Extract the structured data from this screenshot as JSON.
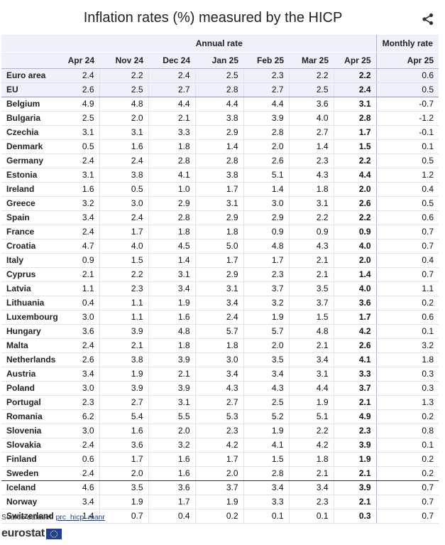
{
  "title": "Inflation rates (%) measured by the HICP",
  "share_icon": "share-icon",
  "chart_data": {
    "type": "table",
    "title": "Inflation rates (%) measured by the HICP",
    "group_headers": [
      {
        "label": "Annual rate",
        "span": 7
      },
      {
        "label": "Monthly rate",
        "span": 1
      }
    ],
    "columns": [
      "Apr 24",
      "Nov 24",
      "Dec 24",
      "Jan 25",
      "Feb 25",
      "Mar 25",
      "Apr 25",
      "Apr 25"
    ],
    "rows": [
      {
        "name": "Euro area",
        "values": [
          "2.4",
          "2.2",
          "2.4",
          "2.5",
          "2.3",
          "2.2",
          "2.2",
          "0.6"
        ]
      },
      {
        "name": "EU",
        "values": [
          "2.6",
          "2.5",
          "2.7",
          "2.8",
          "2.7",
          "2.5",
          "2.4",
          "0.5"
        ]
      },
      {
        "name": "Belgium",
        "values": [
          "4.9",
          "4.8",
          "4.4",
          "4.4",
          "4.4",
          "3.6",
          "3.1",
          "-0.7"
        ]
      },
      {
        "name": "Bulgaria",
        "values": [
          "2.5",
          "2.0",
          "2.1",
          "3.8",
          "3.9",
          "4.0",
          "2.8",
          "-1.2"
        ]
      },
      {
        "name": "Czechia",
        "values": [
          "3.1",
          "3.1",
          "3.3",
          "2.9",
          "2.8",
          "2.7",
          "1.7",
          "-0.1"
        ]
      },
      {
        "name": "Denmark",
        "values": [
          "0.5",
          "1.6",
          "1.8",
          "1.4",
          "2.0",
          "1.4",
          "1.5",
          "0.1"
        ]
      },
      {
        "name": "Germany",
        "values": [
          "2.4",
          "2.4",
          "2.8",
          "2.8",
          "2.6",
          "2.3",
          "2.2",
          "0.5"
        ]
      },
      {
        "name": "Estonia",
        "values": [
          "3.1",
          "3.8",
          "4.1",
          "3.8",
          "5.1",
          "4.3",
          "4.4",
          "1.2"
        ]
      },
      {
        "name": "Ireland",
        "values": [
          "1.6",
          "0.5",
          "1.0",
          "1.7",
          "1.4",
          "1.8",
          "2.0",
          "0.4"
        ]
      },
      {
        "name": "Greece",
        "values": [
          "3.2",
          "3.0",
          "2.9",
          "3.1",
          "3.0",
          "3.1",
          "2.6",
          "0.5"
        ]
      },
      {
        "name": "Spain",
        "values": [
          "3.4",
          "2.4",
          "2.8",
          "2.9",
          "2.9",
          "2.2",
          "2.2",
          "0.6"
        ]
      },
      {
        "name": "France",
        "values": [
          "2.4",
          "1.7",
          "1.8",
          "1.8",
          "0.9",
          "0.9",
          "0.9",
          "0.7"
        ]
      },
      {
        "name": "Croatia",
        "values": [
          "4.7",
          "4.0",
          "4.5",
          "5.0",
          "4.8",
          "4.3",
          "4.0",
          "0.7"
        ]
      },
      {
        "name": "Italy",
        "values": [
          "0.9",
          "1.5",
          "1.4",
          "1.7",
          "1.7",
          "2.1",
          "2.0",
          "0.4"
        ]
      },
      {
        "name": "Cyprus",
        "values": [
          "2.1",
          "2.2",
          "3.1",
          "2.9",
          "2.3",
          "2.1",
          "1.4",
          "0.7"
        ]
      },
      {
        "name": "Latvia",
        "values": [
          "1.1",
          "2.3",
          "3.4",
          "3.1",
          "3.7",
          "3.5",
          "4.0",
          "1.1"
        ]
      },
      {
        "name": "Lithuania",
        "values": [
          "0.4",
          "1.1",
          "1.9",
          "3.4",
          "3.2",
          "3.7",
          "3.6",
          "0.2"
        ]
      },
      {
        "name": "Luxembourg",
        "values": [
          "3.0",
          "1.1",
          "1.6",
          "2.4",
          "1.9",
          "1.5",
          "1.7",
          "0.6"
        ]
      },
      {
        "name": "Hungary",
        "values": [
          "3.6",
          "3.9",
          "4.8",
          "5.7",
          "5.7",
          "4.8",
          "4.2",
          "0.1"
        ]
      },
      {
        "name": "Malta",
        "values": [
          "2.4",
          "2.1",
          "1.8",
          "1.8",
          "2.0",
          "2.1",
          "2.6",
          "3.2"
        ]
      },
      {
        "name": "Netherlands",
        "values": [
          "2.6",
          "3.8",
          "3.9",
          "3.0",
          "3.5",
          "3.4",
          "4.1",
          "1.8"
        ]
      },
      {
        "name": "Austria",
        "values": [
          "3.4",
          "1.9",
          "2.1",
          "3.4",
          "3.4",
          "3.1",
          "3.3",
          "0.3"
        ]
      },
      {
        "name": "Poland",
        "values": [
          "3.0",
          "3.9",
          "3.9",
          "4.3",
          "4.3",
          "4.4",
          "3.7",
          "0.3"
        ]
      },
      {
        "name": "Portugal",
        "values": [
          "2.3",
          "2.7",
          "3.1",
          "2.7",
          "2.5",
          "1.9",
          "2.1",
          "1.3"
        ]
      },
      {
        "name": "Romania",
        "values": [
          "6.2",
          "5.4",
          "5.5",
          "5.3",
          "5.2",
          "5.1",
          "4.9",
          "0.2"
        ]
      },
      {
        "name": "Slovenia",
        "values": [
          "3.0",
          "1.6",
          "2.0",
          "2.3",
          "1.9",
          "2.2",
          "2.3",
          "0.8"
        ]
      },
      {
        "name": "Slovakia",
        "values": [
          "2.4",
          "3.6",
          "3.2",
          "4.2",
          "4.1",
          "4.2",
          "3.9",
          "0.1"
        ]
      },
      {
        "name": "Finland",
        "values": [
          "0.6",
          "1.7",
          "1.6",
          "1.7",
          "1.5",
          "1.8",
          "1.9",
          "0.2"
        ]
      },
      {
        "name": "Sweden",
        "values": [
          "2.4",
          "2.0",
          "1.6",
          "2.0",
          "2.8",
          "2.1",
          "2.1",
          "0.2"
        ]
      },
      {
        "name": "Iceland",
        "values": [
          "4.6",
          "3.5",
          "3.6",
          "3.7",
          "3.4",
          "3.4",
          "3.9",
          "0.7"
        ]
      },
      {
        "name": "Norway",
        "values": [
          "3.4",
          "1.9",
          "1.7",
          "1.9",
          "3.3",
          "2.3",
          "2.1",
          "0.7"
        ]
      },
      {
        "name": "Switzerland",
        "values": [
          "1.4",
          "0.7",
          "0.4",
          "0.2",
          "0.1",
          "0.1",
          "0.3",
          "0.7"
        ]
      }
    ]
  },
  "source": {
    "label": "Source dataset:",
    "link": "prc_hicp_manr"
  },
  "logo": {
    "text": "eurostat",
    "flag_color": "#1a3fa0",
    "star_color": "#ffcc00"
  }
}
